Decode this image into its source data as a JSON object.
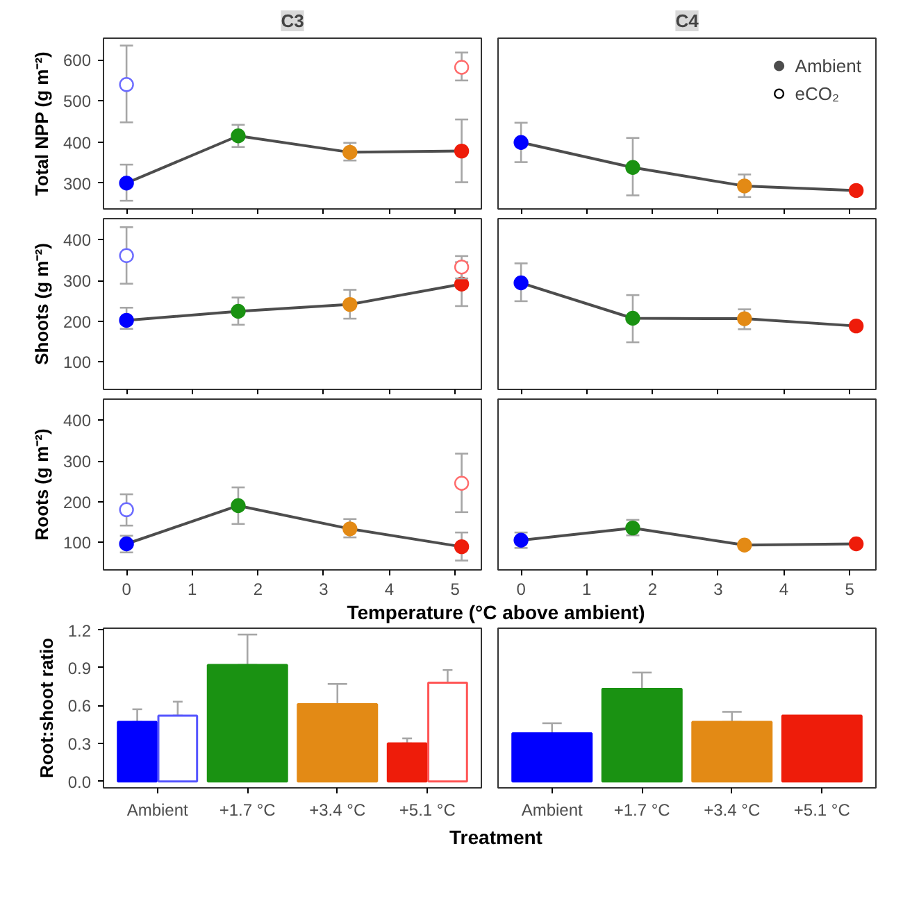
{
  "chart_data": [
    {
      "type": "line",
      "title": "C3",
      "ylabel": "Total NPP (g m⁻²)",
      "x": [
        0,
        1.7,
        3.4,
        5.1
      ],
      "xlim": [
        -0.35,
        5.4
      ],
      "xticks": [
        0,
        1,
        2,
        3,
        4,
        5
      ],
      "ylim": [
        237,
        653
      ],
      "yticks": [
        300,
        400,
        500,
        600
      ],
      "tick_labels": "y",
      "marker": "circle",
      "series": [
        {
          "type": "line",
          "color": "#4d4d4d",
          "colors": [
            "#0000ff",
            "#1a9212",
            "#e38a15",
            "#ee1c0a"
          ],
          "values": [
            300,
            415,
            375,
            378
          ],
          "errors": [
            [
              257,
              345
            ],
            [
              388,
              442
            ],
            [
              355,
              398
            ],
            [
              302,
              455
            ]
          ]
        },
        {
          "type": "scatter",
          "color": "#ffffff",
          "colors": [
            "#6b6bff",
            null,
            null,
            "#ff6b6b"
          ],
          "values": [
            540,
            null,
            null,
            582
          ],
          "errors": [
            [
              448,
              635
            ],
            null,
            null,
            [
              550,
              618
            ]
          ]
        }
      ]
    },
    {
      "type": "line",
      "title": "C4",
      "x": [
        0,
        1.7,
        3.4,
        5.1
      ],
      "xlim": [
        -0.35,
        5.4
      ],
      "xticks": [
        0,
        1,
        2,
        3,
        4,
        5
      ],
      "ylim": [
        237,
        653
      ],
      "yticks": [
        300,
        400,
        500,
        600
      ],
      "tick_labels": false,
      "marker": "circle",
      "legend": "top right",
      "series": [
        {
          "type": "line",
          "name": "Ambient",
          "color": "#4d4d4d",
          "colors": [
            "#0000ff",
            "#1a9212",
            "#e38a15",
            "#ee1c0a"
          ],
          "values": [
            399,
            338,
            293,
            282
          ],
          "errors": [
            [
              351,
              447
            ],
            [
              270,
              410
            ],
            [
              266,
              321
            ],
            null
          ]
        },
        {
          "type": "scatter",
          "name": "eCO₂",
          "color": "#ffffff",
          "values": [
            null,
            null,
            null,
            null
          ]
        }
      ]
    },
    {
      "type": "line",
      "ylabel": "Shoots (g m⁻²)",
      "x": [
        0,
        1.7,
        3.4,
        5.1
      ],
      "xlim": [
        -0.35,
        5.4
      ],
      "xticks": [
        0,
        1,
        2,
        3,
        4,
        5
      ],
      "ylim": [
        32,
        452
      ],
      "yticks": [
        100,
        200,
        300,
        400
      ],
      "tick_labels": "y",
      "marker": "circle",
      "series": [
        {
          "type": "line",
          "color": "#4d4d4d",
          "colors": [
            "#0000ff",
            "#1a9212",
            "#e38a15",
            "#ee1c0a"
          ],
          "values": [
            202,
            224,
            241,
            291
          ],
          "errors": [
            [
              181,
              233
            ],
            [
              191,
              258
            ],
            [
              206,
              277
            ],
            [
              237,
              345
            ]
          ]
        },
        {
          "type": "scatter",
          "color": "#ffffff",
          "colors": [
            "#6b6bff",
            null,
            null,
            "#ff6b6b"
          ],
          "values": [
            361,
            null,
            null,
            333
          ],
          "errors": [
            [
              292,
              431
            ],
            null,
            null,
            [
              305,
              360
            ]
          ]
        }
      ]
    },
    {
      "type": "line",
      "x": [
        0,
        1.7,
        3.4,
        5.1
      ],
      "xlim": [
        -0.35,
        5.4
      ],
      "xticks": [
        0,
        1,
        2,
        3,
        4,
        5
      ],
      "ylim": [
        32,
        452
      ],
      "yticks": [
        100,
        200,
        300,
        400
      ],
      "tick_labels": false,
      "marker": "circle",
      "series": [
        {
          "type": "line",
          "color": "#4d4d4d",
          "colors": [
            "#0000ff",
            "#1a9212",
            "#e38a15",
            "#ee1c0a"
          ],
          "values": [
            294,
            207,
            206,
            188
          ],
          "errors": [
            [
              249,
              342
            ],
            [
              148,
              264
            ],
            [
              180,
              229
            ],
            null
          ]
        }
      ]
    },
    {
      "type": "line",
      "ylabel": "Roots (g m⁻²)",
      "xlabel": "Temperature (°C above ambient)",
      "x": [
        0,
        1.7,
        3.4,
        5.1
      ],
      "xlim": [
        -0.35,
        5.4
      ],
      "xticks": [
        0,
        1,
        2,
        3,
        4,
        5
      ],
      "ylim": [
        32,
        452
      ],
      "yticks": [
        100,
        200,
        300,
        400
      ],
      "marker": "circle",
      "series": [
        {
          "type": "line",
          "color": "#4d4d4d",
          "colors": [
            "#0000ff",
            "#1a9212",
            "#e38a15",
            "#ee1c0a"
          ],
          "values": [
            96,
            190,
            133,
            89
          ],
          "errors": [
            [
              75,
              116
            ],
            [
              145,
              235
            ],
            [
              112,
              157
            ],
            [
              55,
              124
            ]
          ]
        },
        {
          "type": "scatter",
          "color": "#ffffff",
          "colors": [
            "#6b6bff",
            null,
            null,
            "#ff6b6b"
          ],
          "values": [
            180,
            null,
            null,
            245
          ],
          "errors": [
            [
              141,
              218
            ],
            null,
            null,
            [
              174,
              318
            ]
          ]
        }
      ]
    },
    {
      "type": "line",
      "x": [
        0,
        1.7,
        3.4,
        5.1
      ],
      "xlim": [
        -0.35,
        5.4
      ],
      "xticks": [
        0,
        1,
        2,
        3,
        4,
        5
      ],
      "ylim": [
        32,
        452
      ],
      "yticks": [
        100,
        200,
        300,
        400
      ],
      "tick_labels": "x",
      "marker": "circle",
      "series": [
        {
          "type": "line",
          "color": "#4d4d4d",
          "colors": [
            "#0000ff",
            "#1a9212",
            "#e38a15",
            "#ee1c0a"
          ],
          "values": [
            105,
            135,
            93,
            96
          ],
          "errors": [
            [
              86,
              124
            ],
            [
              117,
              155
            ],
            null,
            null
          ]
        }
      ]
    },
    {
      "type": "bar",
      "ylabel": "Root:shoot ratio",
      "xlabel": "Treatment",
      "categories": [
        "Ambient",
        "+1.7 °C",
        "+3.4 °C",
        "+5.1 °C"
      ],
      "ylim": [
        -0.05,
        1.21
      ],
      "yticks": [
        {
          "value": 0,
          "label": "0.0"
        },
        0.3,
        0.6,
        0.9,
        1.2
      ],
      "series": [
        {
          "colors": [
            "#0000ff",
            "#1a9212",
            "#e38a15",
            "#ee1c0a"
          ],
          "values": [
            0.47,
            0.92,
            0.61,
            0.3
          ],
          "errors": [
            [
              0.47,
              0.57
            ],
            [
              0.92,
              1.16
            ],
            [
              0.61,
              0.77
            ],
            [
              0.3,
              0.34
            ]
          ]
        },
        {
          "color": "#ffffff",
          "colors": [
            "#5555ff",
            null,
            null,
            "#ff5555"
          ],
          "values": [
            0.52,
            null,
            null,
            0.78
          ],
          "errors": [
            [
              0.52,
              0.63
            ],
            null,
            null,
            [
              0.78,
              0.88
            ]
          ]
        }
      ]
    },
    {
      "type": "bar",
      "categories": [
        "Ambient",
        "+1.7 °C",
        "+3.4 °C",
        "+5.1 °C"
      ],
      "ylim": [
        -0.05,
        1.21
      ],
      "yticks": [
        0,
        0.3,
        0.6,
        0.9,
        1.2
      ],
      "tick_labels": "x",
      "series": [
        {
          "colors": [
            "#0000ff",
            "#1a9212",
            "#e38a15",
            "#ee1c0a"
          ],
          "values": [
            0.38,
            0.73,
            0.47,
            0.52
          ],
          "errors": [
            [
              0.38,
              0.46
            ],
            [
              0.73,
              0.86
            ],
            [
              0.47,
              0.55
            ],
            null
          ]
        }
      ]
    }
  ]
}
